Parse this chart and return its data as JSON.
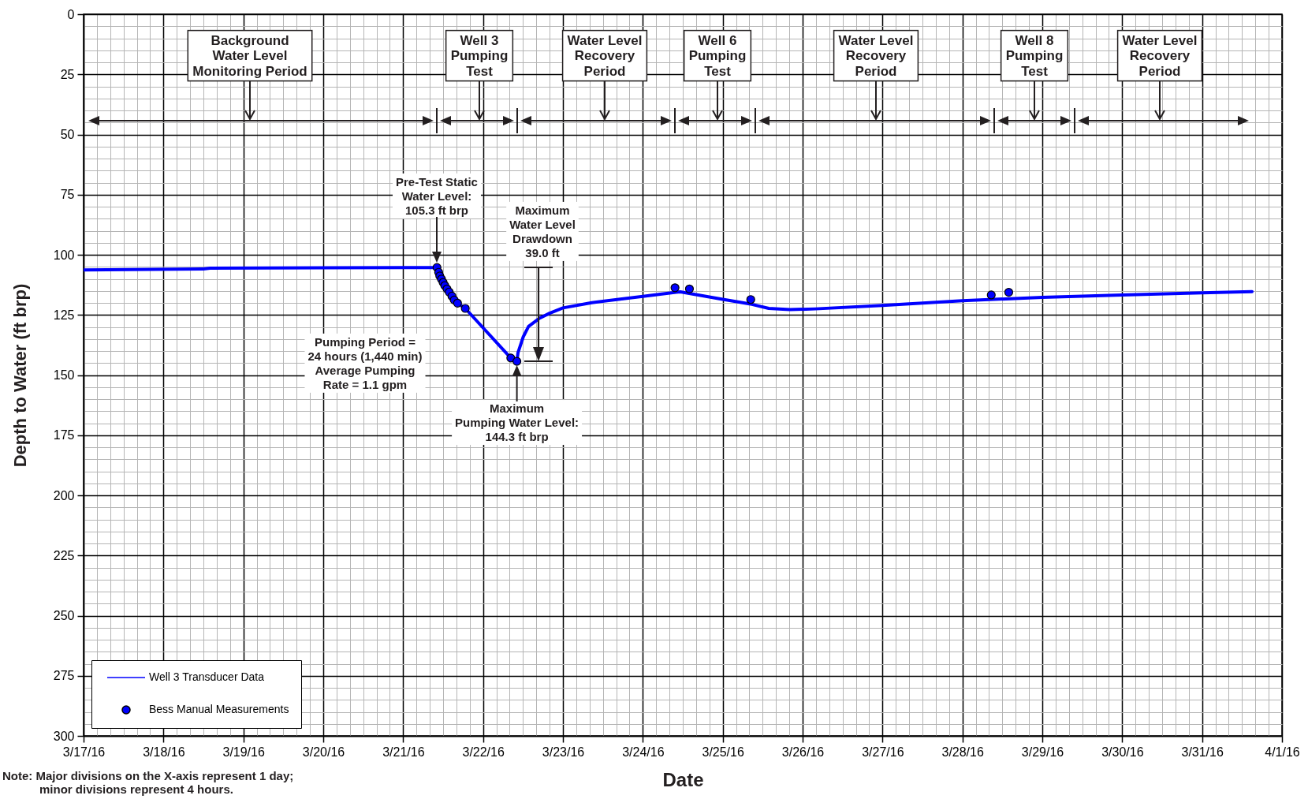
{
  "chart_data": {
    "type": "line",
    "xlabel": "Date",
    "ylabel": "Depth to Water (ft brp)",
    "xlim": [
      "--03-17",
      "--04-01"
    ],
    "ylim": [
      300,
      0
    ],
    "xticks": [
      {
        "value": "--03-17",
        "label": "3/17/16"
      },
      {
        "value": "--03-17T04:00",
        "label": null
      },
      {
        "value": "--03-17T08:00",
        "label": null
      },
      {
        "value": "--03-17T12:00",
        "label": null
      },
      {
        "value": "--03-17T16:00",
        "label": null
      },
      {
        "value": "--03-17T20:00",
        "label": null
      },
      {
        "value": "--03-18",
        "label": "3/18/16"
      },
      {
        "value": "--03-18T04:00",
        "label": null
      },
      {
        "value": "--03-18T08:00",
        "label": null
      },
      {
        "value": "--03-18T12:00",
        "label": null
      },
      {
        "value": "--03-18T16:00",
        "label": null
      },
      {
        "value": "--03-18T20:00",
        "label": null
      },
      {
        "value": "--03-19",
        "label": "3/19/16"
      },
      {
        "value": "--03-19T04:00",
        "label": null
      },
      {
        "value": "--03-19T08:00",
        "label": null
      },
      {
        "value": "--03-19T12:00",
        "label": null
      },
      {
        "value": "--03-19T16:00",
        "label": null
      },
      {
        "value": "--03-19T20:00",
        "label": null
      },
      {
        "value": "--03-20",
        "label": "3/20/16"
      },
      {
        "value": "--03-20T04:00",
        "label": null
      },
      {
        "value": "--03-20T08:00",
        "label": null
      },
      {
        "value": "--03-20T12:00",
        "label": null
      },
      {
        "value": "--03-20T16:00",
        "label": null
      },
      {
        "value": "--03-20T20:00",
        "label": null
      },
      {
        "value": "--03-21",
        "label": "3/21/16"
      },
      {
        "value": "--03-21T04:00",
        "label": null
      },
      {
        "value": "--03-21T08:00",
        "label": null
      },
      {
        "value": "--03-21T12:00",
        "label": null
      },
      {
        "value": "--03-21T16:00",
        "label": null
      },
      {
        "value": "--03-21T20:00",
        "label": null
      },
      {
        "value": "--03-22",
        "label": "3/22/16"
      },
      {
        "value": "--03-22T04:00",
        "label": null
      },
      {
        "value": "--03-22T08:00",
        "label": null
      },
      {
        "value": "--03-22T12:00",
        "label": null
      },
      {
        "value": "--03-22T16:00",
        "label": null
      },
      {
        "value": "--03-22T20:00",
        "label": null
      },
      {
        "value": "--03-23",
        "label": "3/23/16"
      },
      {
        "value": "--03-23T04:00",
        "label": null
      },
      {
        "value": "--03-23T08:00",
        "label": null
      },
      {
        "value": "--03-23T12:00",
        "label": null
      },
      {
        "value": "--03-23T16:00",
        "label": null
      },
      {
        "value": "--03-23T20:00",
        "label": null
      },
      {
        "value": "--03-24",
        "label": "3/24/16"
      },
      {
        "value": "--03-24T04:00",
        "label": null
      },
      {
        "value": "--03-24T08:00",
        "label": null
      },
      {
        "value": "--03-24T12:00",
        "label": null
      },
      {
        "value": "--03-24T16:00",
        "label": null
      },
      {
        "value": "--03-24T20:00",
        "label": null
      },
      {
        "value": "--03-25",
        "label": "3/25/16"
      },
      {
        "value": "--03-25T04:00",
        "label": null
      },
      {
        "value": "--03-25T08:00",
        "label": null
      },
      {
        "value": "--03-25T12:00",
        "label": null
      },
      {
        "value": "--03-25T16:00",
        "label": null
      },
      {
        "value": "--03-25T20:00",
        "label": null
      },
      {
        "value": "--03-26",
        "label": "3/26/16"
      },
      {
        "value": "--03-26T04:00",
        "label": null
      },
      {
        "value": "--03-26T08:00",
        "label": null
      },
      {
        "value": "--03-26T12:00",
        "label": null
      },
      {
        "value": "--03-26T16:00",
        "label": null
      },
      {
        "value": "--03-26T20:00",
        "label": null
      },
      {
        "value": "--03-27",
        "label": "3/27/16"
      },
      {
        "value": "--03-27T04:00",
        "label": null
      },
      {
        "value": "--03-27T08:00",
        "label": null
      },
      {
        "value": "--03-27T12:00",
        "label": null
      },
      {
        "value": "--03-27T16:00",
        "label": null
      },
      {
        "value": "--03-27T20:00",
        "label": null
      },
      {
        "value": "--03-28",
        "label": "3/28/16"
      },
      {
        "value": "--03-28T04:00",
        "label": null
      },
      {
        "value": "--03-28T08:00",
        "label": null
      },
      {
        "value": "--03-28T12:00",
        "label": null
      },
      {
        "value": "--03-28T16:00",
        "label": null
      },
      {
        "value": "--03-28T20:00",
        "label": null
      },
      {
        "value": "--03-29",
        "label": "3/29/16"
      },
      {
        "value": "--03-29T04:00",
        "label": null
      },
      {
        "value": "--03-29T08:00",
        "label": null
      },
      {
        "value": "--03-29T12:00",
        "label": null
      },
      {
        "value": "--03-29T16:00",
        "label": null
      },
      {
        "value": "--03-29T20:00",
        "label": null
      },
      {
        "value": "--03-30",
        "label": "3/30/16"
      },
      {
        "value": "--03-30T04:00",
        "label": null
      },
      {
        "value": "--03-30T08:00",
        "label": null
      },
      {
        "value": "--03-30T12:00",
        "label": null
      },
      {
        "value": "--03-30T16:00",
        "label": null
      },
      {
        "value": "--03-30T20:00",
        "label": null
      },
      {
        "value": "--03-31",
        "label": "3/31/16"
      },
      {
        "value": "--03-31T04:00",
        "label": null
      },
      {
        "value": "--03-31T08:00",
        "label": null
      },
      {
        "value": "--03-31T12:00",
        "label": null
      },
      {
        "value": "--03-31T16:00",
        "label": null
      },
      {
        "value": "--03-31T20:00",
        "label": null
      },
      {
        "value": "--04-01",
        "label": "4/1/16"
      }
    ],
    "yticks": [
      0,
      {
        "value": 5,
        "label": null
      },
      {
        "value": 10,
        "label": null
      },
      {
        "value": 15,
        "label": null
      },
      {
        "value": 20,
        "label": null
      },
      25,
      {
        "value": 30,
        "label": null
      },
      {
        "value": 35,
        "label": null
      },
      {
        "value": 40,
        "label": null
      },
      {
        "value": 45,
        "label": null
      },
      50,
      {
        "value": 55,
        "label": null
      },
      {
        "value": 60,
        "label": null
      },
      {
        "value": 65,
        "label": null
      },
      {
        "value": 70,
        "label": null
      },
      75,
      {
        "value": 80,
        "label": null
      },
      {
        "value": 85,
        "label": null
      },
      {
        "value": 90,
        "label": null
      },
      {
        "value": 95,
        "label": null
      },
      100,
      {
        "value": 105,
        "label": null
      },
      {
        "value": 110,
        "label": null
      },
      {
        "value": 115,
        "label": null
      },
      {
        "value": 120,
        "label": null
      },
      125,
      {
        "value": 130,
        "label": null
      },
      {
        "value": 135,
        "label": null
      },
      {
        "value": 140,
        "label": null
      },
      {
        "value": 145,
        "label": null
      },
      150,
      {
        "value": 155,
        "label": null
      },
      {
        "value": 160,
        "label": null
      },
      {
        "value": 165,
        "label": null
      },
      {
        "value": 170,
        "label": null
      },
      175,
      {
        "value": 180,
        "label": null
      },
      {
        "value": 185,
        "label": null
      },
      {
        "value": 190,
        "label": null
      },
      {
        "value": 195,
        "label": null
      },
      200,
      {
        "value": 205,
        "label": null
      },
      {
        "value": 210,
        "label": null
      },
      {
        "value": 215,
        "label": null
      },
      {
        "value": 220,
        "label": null
      },
      225,
      {
        "value": 230,
        "label": null
      },
      {
        "value": 235,
        "label": null
      },
      {
        "value": 240,
        "label": null
      },
      {
        "value": 245,
        "label": null
      },
      250,
      {
        "value": 255,
        "label": null
      },
      {
        "value": 260,
        "label": null
      },
      {
        "value": 265,
        "label": null
      },
      {
        "value": 270,
        "label": null
      },
      275,
      {
        "value": 280,
        "label": null
      },
      {
        "value": 285,
        "label": null
      },
      {
        "value": 290,
        "label": null
      },
      {
        "value": 295,
        "label": null
      },
      300
    ],
    "grid": true,
    "legend": "bottom left",
    "series": [
      {
        "name": "Well 3 Transducer Data",
        "color": "#0000ff",
        "x": [
          "--03-17T00:00",
          "--03-18T12:00",
          "--03-18T14:00",
          "--03-20T00:00",
          "--03-21T10:10",
          "--03-21T10:40",
          "--03-21T11:00",
          "--03-21T11:30",
          "--03-21T12:00",
          "--03-21T12:30",
          "--03-21T13:10",
          "--03-21T13:50",
          "--03-21T14:40",
          "--03-21T15:20",
          "--03-21T16:20",
          "--03-21T18:40",
          "--03-22T08:20",
          "--03-22T10:10",
          "--03-22T10:30",
          "--03-22T12:05",
          "--03-22T13:40",
          "--03-22T16:50",
          "--03-22T20:00",
          "--03-23T00:00",
          "--03-23T08:40",
          "--03-24T00:30",
          "--03-24T10:00",
          "--03-24T11:15",
          "--03-25T00:00",
          "--03-25T08:45",
          "--03-25T13:50",
          "--03-25T20:10",
          "--03-26T03:45",
          "--03-27T00:00",
          "--03-28T00:00",
          "--03-29T00:00",
          "--03-30T00:00",
          "--03-31T00:00",
          "--03-31T15:00"
        ],
        "values": [
          106.3,
          105.9,
          105.6,
          105.4,
          105.3,
          107.3,
          108.8,
          110.1,
          111.5,
          112.8,
          114.2,
          115.5,
          117.2,
          118.8,
          120.1,
          122.3,
          142.9,
          144.3,
          140.7,
          134.1,
          129.8,
          126.5,
          124.3,
          122.1,
          119.9,
          117.2,
          115.6,
          115.4,
          118.5,
          120.6,
          122.3,
          122.8,
          122.5,
          121.1,
          119.1,
          117.7,
          116.7,
          115.8,
          115.3
        ]
      },
      {
        "name": "Bess Manual Measurements",
        "type": "scatter",
        "marker": "circle",
        "color": "#0000ff",
        "x": [
          "--03-21T10:10",
          "--03-21T10:40",
          "--03-21T11:00",
          "--03-21T11:30",
          "--03-21T12:00",
          "--03-21T12:30",
          "--03-21T13:10",
          "--03-21T13:50",
          "--03-21T14:40",
          "--03-21T15:20",
          "--03-21T16:20",
          "--03-21T18:40",
          "--03-22T08:20",
          "--03-22T10:10",
          "--03-24T09:40",
          "--03-24T14:00",
          "--03-25T08:25",
          "--03-28T08:40",
          "--03-28T13:55"
        ],
        "values": [
          105.3,
          107.3,
          108.8,
          110.1,
          111.5,
          112.8,
          114.2,
          115.5,
          117.2,
          118.8,
          120.1,
          122.3,
          142.9,
          144.3,
          113.7,
          114.2,
          118.6,
          116.7,
          115.6
        ]
      }
    ],
    "annotations": [
      "Background\nWater Level\nMonitoring Period",
      "Well 3\nPumping\nTest",
      "Water Level\nRecovery\nPeriod",
      "Well 6\nPumping\nTest",
      "Water Level\nRecovery\nPeriod",
      "Well 8\nPumping\nTest",
      "Water Level\nRecovery\nPeriod",
      "Pre-Test Static\nWater Level:\n105.3 ft brp",
      "Maximum\nWater Level\nDrawdown\n39.0 ft",
      {
        "text": "Maximum\nPumping Water Level:\n144.3 ft brp",
        "x": "--03-22T10:10",
        "y": 144.3
      },
      "Pumping Period =\n24 hours (1,440 min)\nAverage Pumping\nRate = 1.1 gpm",
      "Note: Major divisions on the X-axis represent 1 day;\nminor divisions represent 4 hours."
    ]
  }
}
